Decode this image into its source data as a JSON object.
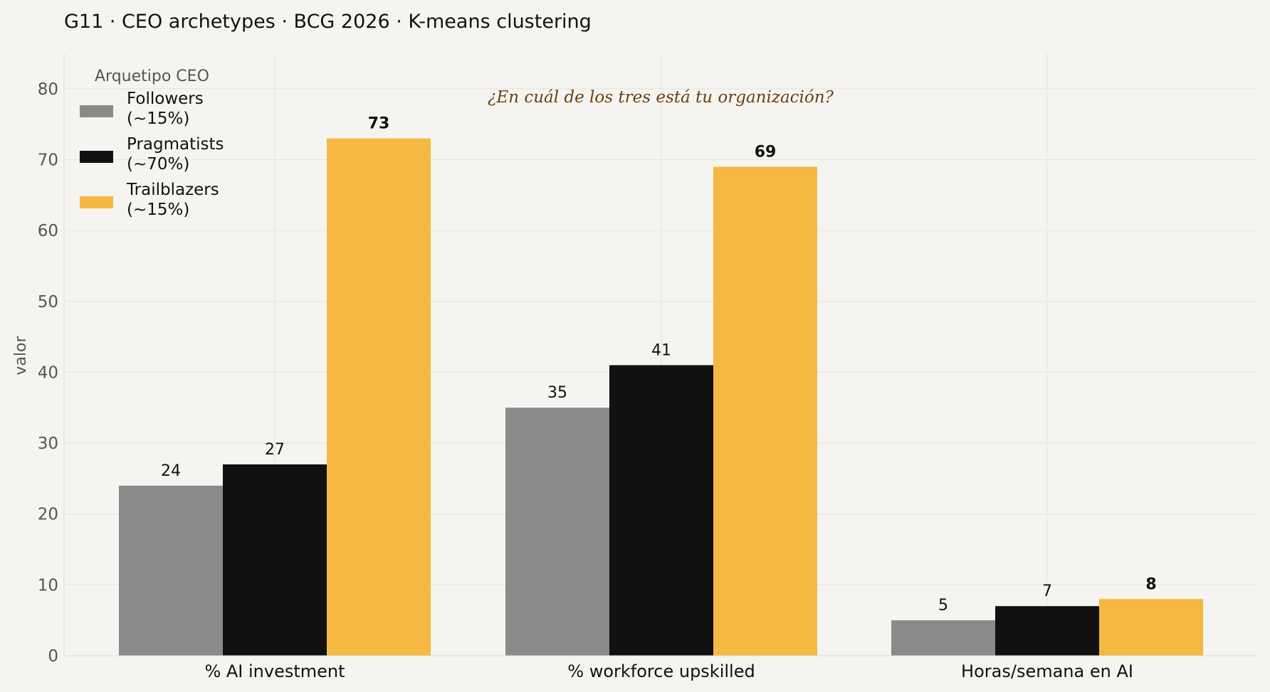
{
  "chart_data": {
    "type": "bar",
    "title": "G11 · CEO archetypes · BCG 2026 · K-means clustering",
    "ylabel": "valor",
    "xlabel": "",
    "ylim": [
      0,
      85
    ],
    "yticks": [
      0,
      10,
      20,
      30,
      40,
      50,
      60,
      70,
      80
    ],
    "grid": true,
    "categories": [
      "% AI investment",
      "% workforce upskilled",
      "Horas/semana en AI"
    ],
    "series": [
      {
        "name": "Followers",
        "legend_line2": "(~15%)",
        "color": "#8a8a8a",
        "values": [
          24,
          35,
          5
        ],
        "bold_labels": false
      },
      {
        "name": "Pragmatists",
        "legend_line2": "(~70%)",
        "color": "#111111",
        "values": [
          27,
          41,
          7
        ],
        "bold_labels": false
      },
      {
        "name": "Trailblazers",
        "legend_line2": "(~15%)",
        "color": "#f5b841",
        "values": [
          73,
          69,
          8
        ],
        "bold_labels": true
      }
    ],
    "legend": {
      "title": "Arquetipo CEO",
      "placement": "top-left"
    },
    "annotation": "¿En cuál de los tres está tu organización?"
  }
}
